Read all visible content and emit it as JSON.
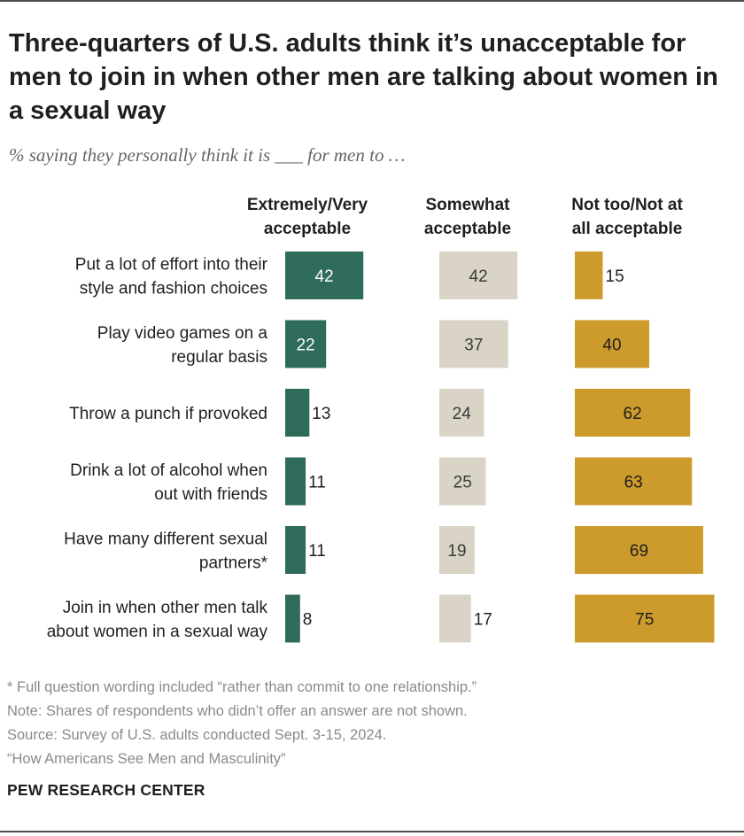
{
  "title": "Three-quarters of U.S. adults think it’s unacceptable for men to join in when other men are talking about women in a sexual way",
  "subtitle": "% saying they personally think it is ___ for men to …",
  "chart_data": {
    "type": "bar",
    "categories": [
      [
        "Put a lot of effort into their",
        "style and fashion choices"
      ],
      [
        "Play video games on a",
        "regular basis"
      ],
      [
        "Throw a punch if provoked"
      ],
      [
        "Drink a lot of alcohol when",
        "out with friends"
      ],
      [
        "Have many different sexual",
        "partners*"
      ],
      [
        "Join in when other men talk",
        "about women in a sexual way"
      ]
    ],
    "series": [
      {
        "name": [
          "Extremely/Very",
          "acceptable"
        ],
        "values": [
          42,
          22,
          13,
          11,
          11,
          8
        ],
        "color": "#2e6b5a",
        "label_color": "#ffffff"
      },
      {
        "name": [
          "Somewhat",
          "acceptable"
        ],
        "values": [
          42,
          37,
          24,
          25,
          19,
          17
        ],
        "color": "#d9d4c5",
        "label_color": "#3a3a3a"
      },
      {
        "name": [
          "Not too/Not at",
          "all acceptable"
        ],
        "values": [
          15,
          40,
          62,
          63,
          69,
          75
        ],
        "color": "#cd9b2b",
        "label_color": "#1f1f1f"
      }
    ]
  },
  "footnotes": [
    "* Full question wording included “rather than commit to one relationship.”",
    "Note: Shares of respondents who didn’t offer an answer are not shown.",
    "Source: Survey of U.S. adults conducted Sept. 3-15, 2024.",
    "“How Americans See Men and Masculinity”"
  ],
  "source_brand": "PEW RESEARCH CENTER"
}
